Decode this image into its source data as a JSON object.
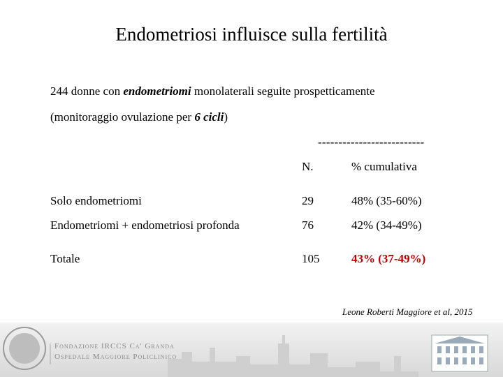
{
  "title": "Endometriosi influisce sulla fertilità",
  "intro": [
    [
      {
        "text": "244 donne con "
      },
      {
        "text": "endometriomi",
        "emphasis": true
      },
      {
        "text": " monolaterali seguite prospetticamente"
      }
    ],
    [
      {
        "text": "(monitoraggio ovulazione per "
      },
      {
        "text": "6 cicli",
        "emphasis": true
      },
      {
        "text": ")"
      }
    ]
  ],
  "separator": "--------------------------",
  "table": {
    "header": [
      "N.",
      "% cumulativa"
    ],
    "rows": [
      [
        "Solo endometriomi",
        "29",
        "48% (35-60%)"
      ],
      [
        "Endometriomi + endometriosi profonda",
        "76",
        "42% (34-49%)"
      ],
      [
        "Totale",
        "105",
        "43% (37-49%)"
      ]
    ],
    "highlight": [
      2,
      2
    ]
  },
  "citation": "Leone Roberti Maggiore et al, 2015",
  "footer": {
    "logo_lines": [
      "Fondazione IRCCS Ca' Granda",
      "Ospedale Maggiore Policlinico"
    ]
  }
}
